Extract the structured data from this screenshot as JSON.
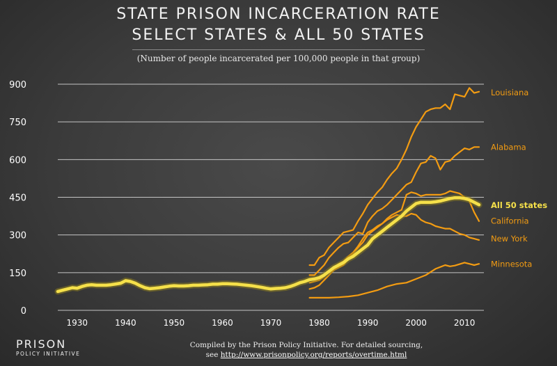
{
  "header": {
    "title_line1": "STATE PRISON INCARCERATION RATE",
    "title_line2": "SELECT STATES & ALL 50 STATES",
    "subtitle": "(Number of people incarcerated per 100,000 people in that group)"
  },
  "footer": {
    "logo_top": "PRISON",
    "logo_bottom": "POLICY INITIATIVE",
    "credit_line1": "Compiled by the Prison Policy Initiative. For detailed sourcing,",
    "credit_prefix": "see ",
    "credit_url": "http://www.prisonpolicy.org/reports/overtime.html"
  },
  "colors": {
    "state_line": "#f39c12",
    "all_states_line": "#f5e04a",
    "all_states_glow": "#8a7b20",
    "grid": "#dddddd",
    "text": "#ffffff"
  },
  "chart_data": {
    "type": "line",
    "xlim": [
      1926,
      2014
    ],
    "ylim": [
      0,
      900
    ],
    "x_ticks": [
      1930,
      1940,
      1950,
      1960,
      1970,
      1980,
      1990,
      2000,
      2010
    ],
    "y_ticks": [
      0,
      150,
      300,
      450,
      600,
      750,
      900
    ],
    "grid": "horizontal",
    "series": [
      {
        "name": "Louisiana",
        "color": "#f39c12",
        "x": [
          1978,
          1979,
          1980,
          1981,
          1982,
          1983,
          1984,
          1985,
          1986,
          1987,
          1988,
          1989,
          1990,
          1991,
          1992,
          1993,
          1994,
          1995,
          1996,
          1997,
          1998,
          1999,
          2000,
          2001,
          2002,
          2003,
          2004,
          2005,
          2006,
          2007,
          2008,
          2009,
          2010,
          2011,
          2012,
          2013
        ],
        "values": [
          180,
          180,
          210,
          220,
          250,
          270,
          290,
          310,
          315,
          320,
          355,
          385,
          420,
          445,
          470,
          490,
          520,
          545,
          565,
          600,
          640,
          690,
          730,
          760,
          790,
          800,
          805,
          805,
          820,
          800,
          860,
          855,
          850,
          885,
          865,
          870
        ]
      },
      {
        "name": "Alabama",
        "color": "#f39c12",
        "x": [
          1978,
          1979,
          1980,
          1981,
          1982,
          1983,
          1984,
          1985,
          1986,
          1987,
          1988,
          1989,
          1990,
          1991,
          1992,
          1993,
          1994,
          1995,
          1996,
          1997,
          1998,
          1999,
          2000,
          2001,
          2002,
          2003,
          2004,
          2005,
          2006,
          2007,
          2008,
          2009,
          2010,
          2011,
          2012,
          2013
        ],
        "values": [
          140,
          140,
          160,
          180,
          210,
          230,
          250,
          265,
          270,
          290,
          310,
          305,
          350,
          375,
          395,
          405,
          420,
          440,
          460,
          480,
          500,
          510,
          550,
          585,
          590,
          615,
          605,
          560,
          590,
          595,
          615,
          630,
          645,
          640,
          650,
          650
        ]
      },
      {
        "name": "California",
        "color": "#f39c12",
        "x": [
          1978,
          1979,
          1980,
          1981,
          1982,
          1983,
          1984,
          1985,
          1986,
          1987,
          1988,
          1989,
          1990,
          1991,
          1992,
          1993,
          1994,
          1995,
          1996,
          1997,
          1998,
          1999,
          2000,
          2001,
          2002,
          2003,
          2004,
          2005,
          2006,
          2007,
          2008,
          2009,
          2010,
          2011,
          2012,
          2013
        ],
        "values": [
          85,
          90,
          100,
          120,
          140,
          160,
          170,
          180,
          205,
          225,
          250,
          270,
          300,
          315,
          330,
          345,
          365,
          380,
          390,
          400,
          460,
          470,
          465,
          455,
          460,
          460,
          460,
          460,
          465,
          475,
          470,
          465,
          450,
          435,
          390,
          355
        ]
      },
      {
        "name": "New York",
        "color": "#f39c12",
        "x": [
          1978,
          1979,
          1980,
          1981,
          1982,
          1983,
          1984,
          1985,
          1986,
          1987,
          1988,
          1989,
          1990,
          1991,
          1992,
          1993,
          1994,
          1995,
          1996,
          1997,
          1998,
          1999,
          2000,
          2001,
          2002,
          2003,
          2004,
          2005,
          2006,
          2007,
          2008,
          2009,
          2010,
          2011,
          2012,
          2013
        ],
        "values": [
          110,
          115,
          120,
          135,
          155,
          170,
          185,
          195,
          215,
          230,
          255,
          285,
          310,
          320,
          335,
          345,
          360,
          370,
          380,
          375,
          375,
          385,
          380,
          360,
          350,
          345,
          335,
          330,
          325,
          325,
          315,
          305,
          300,
          290,
          285,
          280
        ]
      },
      {
        "name": "Minnesota",
        "color": "#f39c12",
        "x": [
          1978,
          1980,
          1982,
          1984,
          1986,
          1988,
          1990,
          1992,
          1994,
          1996,
          1998,
          2000,
          2002,
          2004,
          2006,
          2007,
          2008,
          2010,
          2011,
          2012,
          2013
        ],
        "values": [
          50,
          50,
          50,
          52,
          55,
          60,
          70,
          80,
          95,
          105,
          110,
          125,
          140,
          165,
          180,
          175,
          178,
          190,
          185,
          180,
          185
        ]
      },
      {
        "name": "All 50 states",
        "color": "#f5e04a",
        "x": [
          1926,
          1927,
          1928,
          1929,
          1930,
          1931,
          1932,
          1933,
          1934,
          1935,
          1936,
          1937,
          1938,
          1939,
          1940,
          1941,
          1942,
          1943,
          1944,
          1945,
          1946,
          1947,
          1948,
          1949,
          1950,
          1951,
          1952,
          1953,
          1954,
          1955,
          1956,
          1957,
          1958,
          1959,
          1960,
          1961,
          1962,
          1963,
          1964,
          1965,
          1966,
          1967,
          1968,
          1969,
          1970,
          1971,
          1972,
          1973,
          1974,
          1975,
          1976,
          1977,
          1978,
          1979,
          1980,
          1981,
          1982,
          1983,
          1984,
          1985,
          1986,
          1987,
          1988,
          1989,
          1990,
          1991,
          1992,
          1993,
          1994,
          1995,
          1996,
          1997,
          1998,
          1999,
          2000,
          2001,
          2002,
          2003,
          2004,
          2005,
          2006,
          2007,
          2008,
          2009,
          2010,
          2011,
          2012,
          2013
        ],
        "values": [
          75,
          80,
          85,
          90,
          88,
          95,
          100,
          102,
          100,
          100,
          100,
          102,
          105,
          108,
          118,
          115,
          108,
          98,
          90,
          86,
          88,
          90,
          93,
          96,
          98,
          97,
          97,
          98,
          100,
          100,
          101,
          102,
          104,
          104,
          106,
          106,
          105,
          104,
          102,
          100,
          98,
          95,
          92,
          88,
          85,
          87,
          88,
          90,
          95,
          102,
          110,
          115,
          122,
          125,
          130,
          140,
          155,
          170,
          180,
          190,
          205,
          215,
          230,
          245,
          260,
          285,
          300,
          315,
          330,
          345,
          360,
          375,
          395,
          410,
          425,
          430,
          430,
          430,
          432,
          435,
          440,
          445,
          448,
          448,
          445,
          440,
          430,
          420
        ]
      }
    ],
    "end_labels": [
      "Louisiana",
      "Alabama",
      "All 50 states",
      "California",
      "New York",
      "Minnesota"
    ]
  }
}
